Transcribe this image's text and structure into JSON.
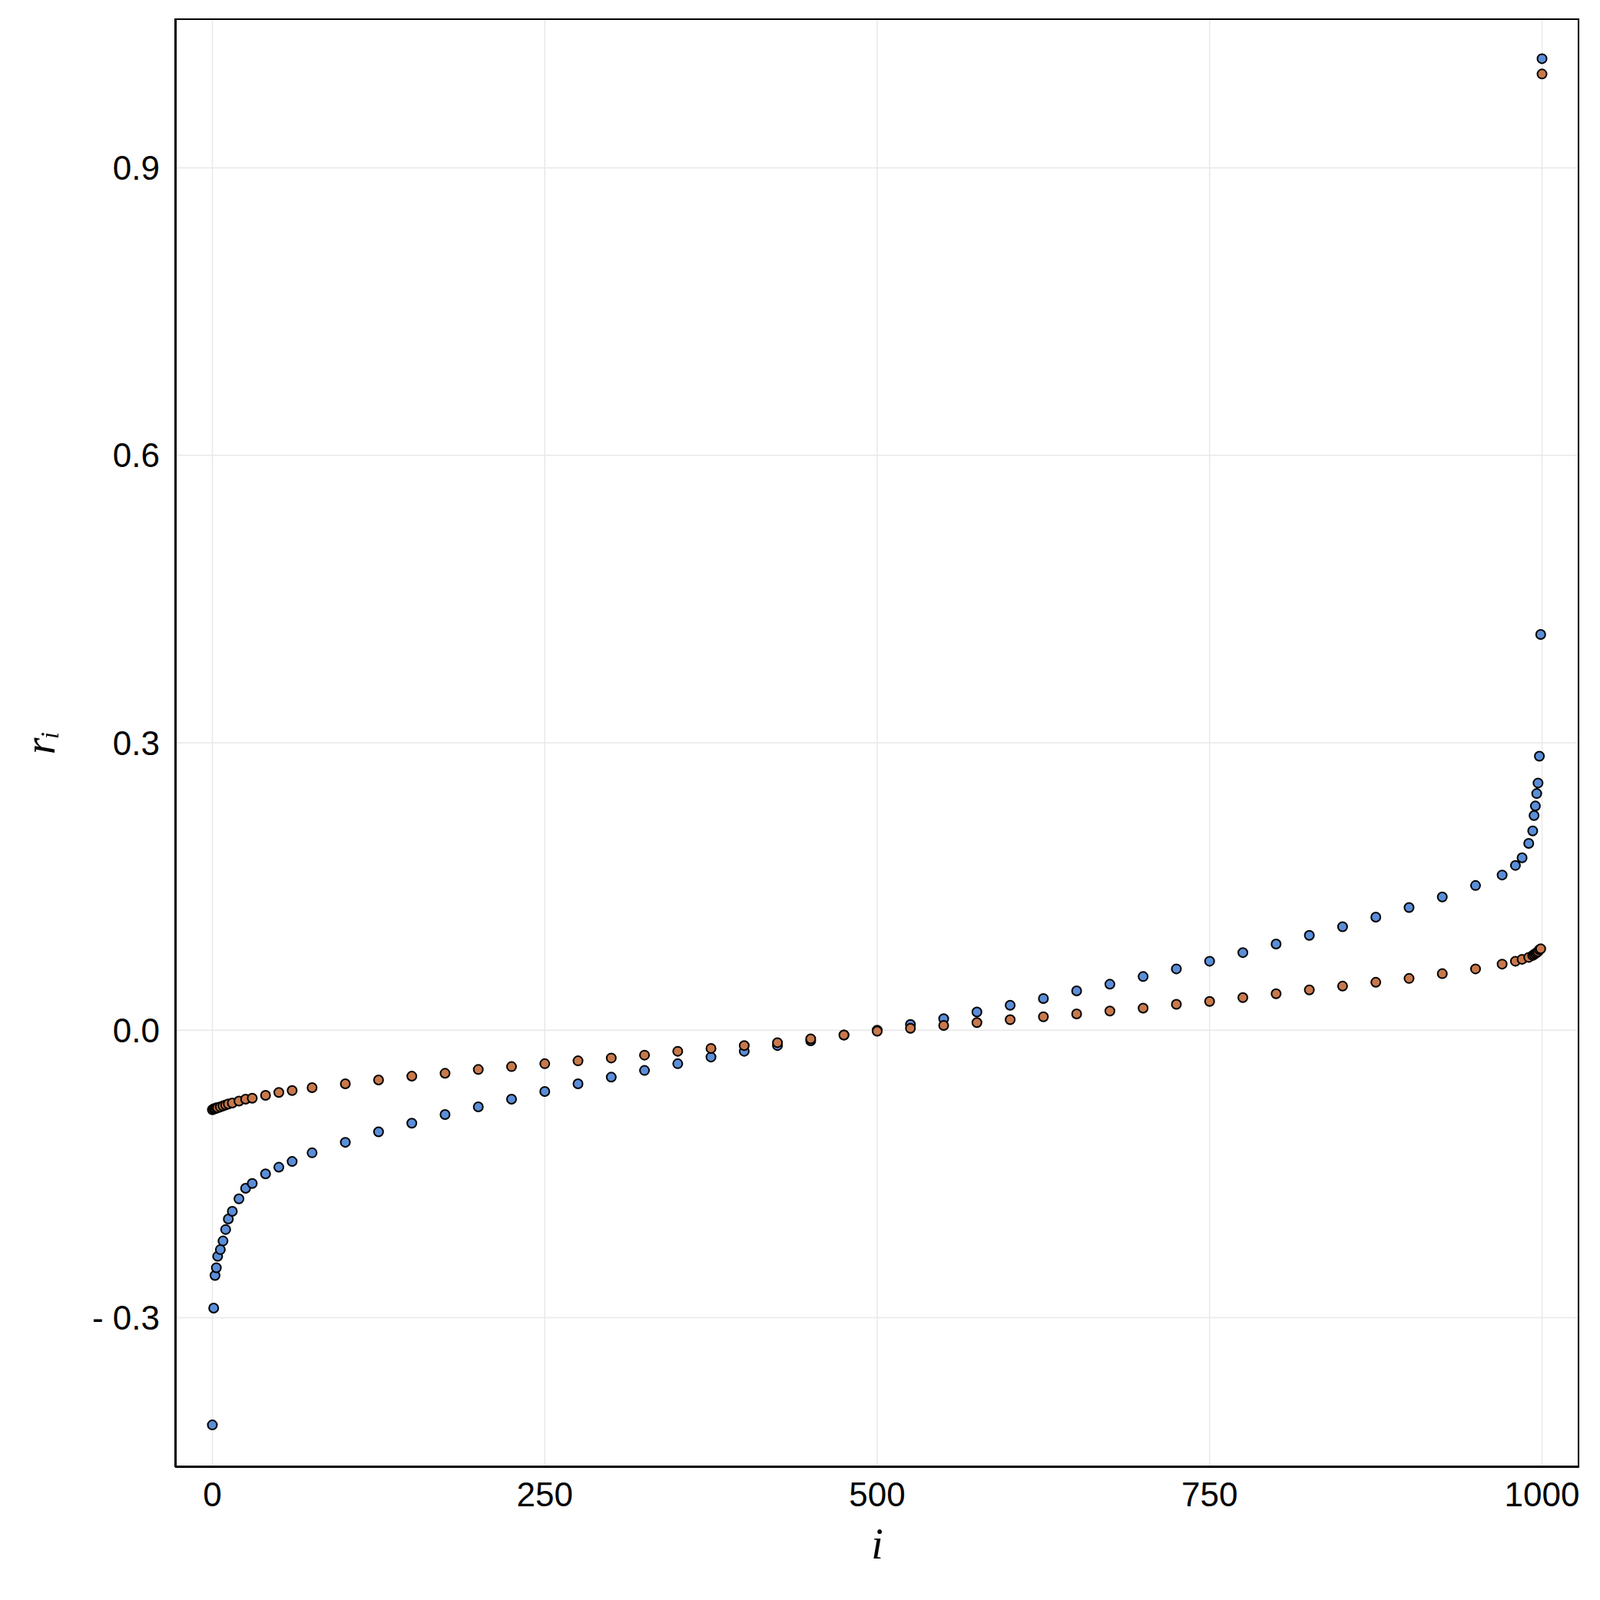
{
  "chart_data": {
    "type": "scatter",
    "xlabel": "i",
    "ylabel": "rᵢ",
    "xlim": [
      -28,
      1028
    ],
    "xticks": [
      0,
      250,
      500,
      750,
      1000
    ],
    "ylim": [
      -0.456,
      1.056
    ],
    "yticks": [
      {
        "value": -0.3,
        "label": "- 0.3"
      },
      {
        "value": 0,
        "label": "0.0"
      },
      0.3,
      0.6,
      0.9
    ],
    "grid": true,
    "x": [
      0,
      1,
      2,
      3,
      4,
      6,
      8,
      10,
      12,
      15,
      20,
      25,
      30,
      40,
      50,
      60,
      75,
      100,
      125,
      150,
      175,
      200,
      225,
      250,
      275,
      300,
      325,
      350,
      375,
      400,
      425,
      450,
      475,
      500,
      525,
      550,
      575,
      600,
      625,
      650,
      675,
      700,
      725,
      750,
      775,
      800,
      825,
      850,
      875,
      900,
      925,
      950,
      970,
      980,
      985,
      990,
      993,
      994,
      995,
      996,
      997,
      998,
      999,
      1000
    ],
    "series": [
      {
        "color": "#5b8ed8",
        "marker": "circle",
        "values": [
          -0.412,
          -0.29,
          -0.256,
          -0.248,
          -0.236,
          -0.229,
          -0.22,
          -0.208,
          -0.197,
          -0.189,
          -0.176,
          -0.165,
          -0.16,
          -0.15,
          -0.143,
          -0.137,
          -0.128,
          -0.117,
          -0.106,
          -0.097,
          -0.088,
          -0.08,
          -0.072,
          -0.064,
          -0.056,
          -0.049,
          -0.042,
          -0.035,
          -0.028,
          -0.022,
          -0.016,
          -0.011,
          -0.005,
          0.0,
          0.006,
          0.012,
          0.019,
          0.026,
          0.033,
          0.041,
          0.048,
          0.056,
          0.064,
          0.072,
          0.081,
          0.09,
          0.099,
          0.108,
          0.118,
          0.128,
          0.139,
          0.151,
          0.162,
          0.172,
          0.18,
          0.195,
          0.208,
          0.224,
          0.234,
          0.247,
          0.258,
          0.286,
          0.413,
          1.014
        ]
      },
      {
        "color": "#c8794c",
        "marker": "circle",
        "values": [
          -0.083,
          -0.082,
          -0.082,
          -0.081,
          -0.081,
          -0.08,
          -0.079,
          -0.078,
          -0.077,
          -0.076,
          -0.074,
          -0.072,
          -0.071,
          -0.068,
          -0.065,
          -0.063,
          -0.06,
          -0.056,
          -0.052,
          -0.048,
          -0.045,
          -0.041,
          -0.038,
          -0.035,
          -0.032,
          -0.029,
          -0.026,
          -0.022,
          -0.019,
          -0.016,
          -0.013,
          -0.009,
          -0.005,
          -0.001,
          0.002,
          0.005,
          0.008,
          0.011,
          0.014,
          0.017,
          0.02,
          0.023,
          0.027,
          0.03,
          0.034,
          0.038,
          0.042,
          0.046,
          0.05,
          0.054,
          0.059,
          0.064,
          0.069,
          0.072,
          0.074,
          0.076,
          0.078,
          0.079,
          0.08,
          0.081,
          0.082,
          0.084,
          0.085,
          0.998
        ]
      }
    ]
  }
}
